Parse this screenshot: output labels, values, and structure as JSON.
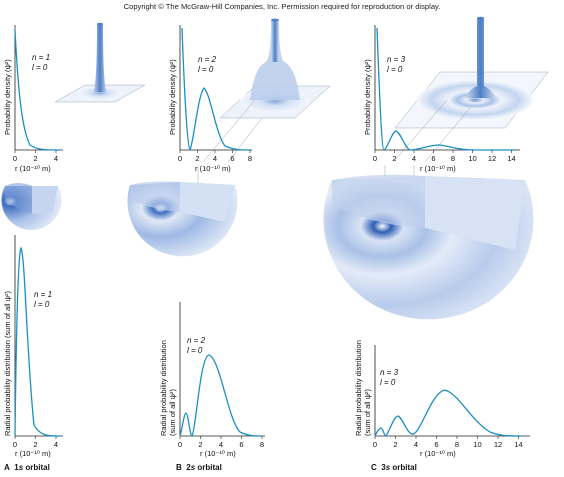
{
  "copyright": "Copyright © The McGraw-Hill Companies, Inc. Permission required for reproduction or display.",
  "colors": {
    "curve": "#1b8fc4",
    "shade": "#4a7fc8",
    "axis": "#222222"
  },
  "panels": [
    {
      "id": "A",
      "caption_letter": "A",
      "caption_sub": "1",
      "caption_s": "s",
      "caption_word": "orbital",
      "n_label": "n = 1",
      "l_label": "l = 0",
      "top_ylabel": "Probability density (ψ²)",
      "bottom_ylabel": "Radial probability distribution (sum of all ψ²)",
      "x_label": "r (10⁻¹⁰ m)",
      "top_xticks": [
        "0",
        "2",
        "4"
      ],
      "bottom_xticks": [
        "0",
        "2",
        "4"
      ]
    },
    {
      "id": "B",
      "caption_letter": "B",
      "caption_sub": "2",
      "caption_s": "s",
      "caption_word": "orbital",
      "n_label": "n = 2",
      "l_label": "l = 0",
      "top_ylabel": "Probability density (ψ²)",
      "bottom_ylabel": "Radial probability distribution (sum of all ψ²)",
      "x_label": "r (10⁻¹⁰ m)",
      "top_xticks": [
        "0",
        "2",
        "4",
        "6",
        "8"
      ],
      "bottom_xticks": [
        "0",
        "2",
        "4",
        "6",
        "8"
      ]
    },
    {
      "id": "C",
      "caption_letter": "C",
      "caption_sub": "3",
      "caption_s": "s",
      "caption_word": "orbital",
      "n_label": "n = 3",
      "l_label": "l = 0",
      "top_ylabel": "Probability density (ψ²)",
      "bottom_ylabel": "Radial probability distribution (sum of all ψ²)",
      "x_label": "r (10⁻¹⁰ m)",
      "top_xticks": [
        "0",
        "2",
        "4",
        "6",
        "8",
        "10",
        "12",
        "14"
      ],
      "bottom_xticks": [
        "0",
        "2",
        "4",
        "6",
        "8",
        "10",
        "12",
        "14"
      ]
    }
  ]
}
